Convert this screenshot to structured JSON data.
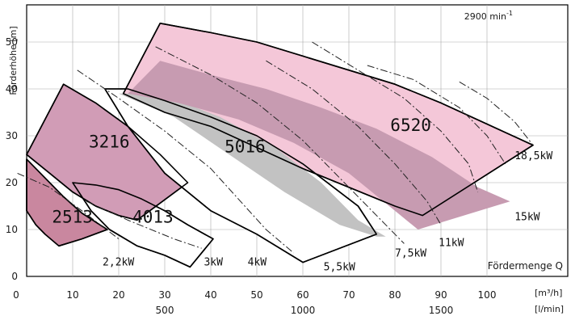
{
  "chart_data": {
    "type": "area",
    "title": "",
    "speed_label": "2900 min",
    "speed_sup": "-1",
    "ylabel": "Förderhöhe [m]",
    "xlabel": "Fördermenge Q",
    "unit_m3h": "[m³/h]",
    "unit_lmin": "[l/min]",
    "xlim": [
      0,
      115
    ],
    "ylim": [
      0,
      57
    ],
    "x_ticks": [
      0,
      10,
      20,
      30,
      40,
      50,
      60,
      70,
      80,
      90,
      100
    ],
    "y_ticks": [
      0,
      10,
      20,
      30,
      40,
      50
    ],
    "lmin_ticks": [
      {
        "value": 500,
        "label": "500"
      },
      {
        "value": 1000,
        "label": "1000"
      },
      {
        "value": 1500,
        "label": "1500"
      }
    ],
    "grid": true,
    "pumps": [
      {
        "name": "2513",
        "color": "#c9879f",
        "label_pos": [
          5.5,
          11.5
        ],
        "upper": [
          [
            0,
            25
          ],
          [
            4,
            21
          ],
          [
            8,
            17
          ],
          [
            12,
            13.5
          ],
          [
            17.5,
            10
          ]
        ],
        "lower": [
          [
            0,
            14
          ],
          [
            2,
            11
          ],
          [
            4,
            9
          ],
          [
            7,
            6.5
          ],
          [
            12,
            8
          ],
          [
            17.5,
            10
          ]
        ],
        "divs": [
          [
            [
              0,
              25
            ],
            [
              0,
              14
            ]
          ],
          [
            [
              17.5,
              10
            ],
            [
              17.5,
              10
            ]
          ]
        ]
      },
      {
        "name": "4013",
        "color": "#ffffff",
        "label_pos": [
          23,
          11.5
        ],
        "upper": [
          [
            10,
            20
          ],
          [
            15,
            19.5
          ],
          [
            20,
            18.5
          ],
          [
            25,
            16.5
          ],
          [
            30,
            14
          ],
          [
            35,
            11
          ],
          [
            40.5,
            8
          ]
        ],
        "lower": [
          [
            10,
            20
          ],
          [
            14,
            14
          ],
          [
            18,
            10
          ],
          [
            24,
            6.5
          ],
          [
            30,
            4.5
          ],
          [
            35.5,
            2
          ]
        ],
        "divs": [
          [
            [
              40.5,
              8
            ],
            [
              35.5,
              2
            ]
          ]
        ]
      },
      {
        "name": "3216",
        "color": "#d19cb6",
        "label_pos": [
          13.5,
          27.5
        ],
        "upper": [
          [
            8,
            41
          ],
          [
            15,
            37
          ],
          [
            22,
            32
          ],
          [
            29,
            26
          ],
          [
            35,
            20
          ]
        ],
        "lower": [
          [
            0,
            26
          ],
          [
            5,
            22
          ],
          [
            10,
            18
          ],
          [
            15,
            15
          ],
          [
            20,
            13
          ],
          [
            24,
            12
          ]
        ],
        "divs": [
          [
            [
              8,
              41
            ],
            [
              0,
              26
            ]
          ],
          [
            [
              35,
              20
            ],
            [
              33,
              16.5
            ],
            [
              30,
              14
            ],
            [
              27,
              12.7
            ],
            [
              24,
              12
            ]
          ]
        ]
      },
      {
        "name": "5016",
        "color": "#ffffff",
        "label_pos": [
          43,
          26.5
        ],
        "upper": [
          [
            17,
            40
          ],
          [
            22,
            40
          ],
          [
            30,
            37.5
          ],
          [
            40,
            34
          ],
          [
            50,
            30
          ],
          [
            60,
            24
          ],
          [
            72,
            15
          ],
          [
            76,
            9
          ]
        ],
        "lower": [
          [
            17,
            40
          ],
          [
            22,
            32
          ],
          [
            30,
            22
          ],
          [
            40,
            14
          ],
          [
            50,
            9
          ],
          [
            60,
            3
          ],
          [
            76,
            9
          ]
        ],
        "divs": []
      },
      {
        "name": "6520",
        "color": "#f4c7d8",
        "label_pos": [
          79,
          31
        ],
        "upper": [
          [
            29,
            54
          ],
          [
            40,
            52
          ],
          [
            50,
            50
          ],
          [
            60,
            47
          ],
          [
            70,
            44
          ],
          [
            80,
            41
          ],
          [
            90,
            37
          ],
          [
            100,
            32.5
          ],
          [
            110,
            28
          ]
        ],
        "lower": [
          [
            21,
            39
          ],
          [
            30,
            35
          ],
          [
            40,
            32
          ],
          [
            50,
            27.5
          ],
          [
            60,
            23
          ],
          [
            70,
            19
          ],
          [
            80,
            15
          ],
          [
            86,
            13
          ]
        ],
        "divs": [
          [
            [
              29,
              54
            ],
            [
              21,
              39
            ]
          ],
          [
            [
              110,
              28
            ],
            [
              100,
              23
            ],
            [
              92,
              19
            ],
            [
              86,
              13
            ]
          ]
        ]
      }
    ],
    "gray_band": {
      "color": "#c2c2c2",
      "left": [
        [
          20,
          39
        ],
        [
          32,
          34
        ],
        [
          44,
          26
        ],
        [
          56,
          18
        ],
        [
          68,
          11
        ],
        [
          76,
          8.5
        ]
      ],
      "right": [
        [
          29,
          39
        ],
        [
          42,
          34
        ],
        [
          54,
          27.5
        ],
        [
          64,
          20
        ],
        [
          72,
          12
        ],
        [
          78,
          8.5
        ]
      ]
    },
    "mauve_band": {
      "color": "#c79bb1",
      "left": [
        [
          29,
          46
        ],
        [
          40,
          43
        ],
        [
          52,
          40
        ],
        [
          64,
          36
        ],
        [
          76,
          31.5
        ],
        [
          88,
          25.5
        ],
        [
          98,
          19
        ],
        [
          105,
          16
        ]
      ],
      "right": [
        [
          22,
          39
        ],
        [
          33,
          37
        ],
        [
          46,
          33.5
        ],
        [
          58,
          28.5
        ],
        [
          70,
          22
        ],
        [
          80,
          14
        ],
        [
          85,
          10
        ]
      ]
    },
    "power_curves": [
      {
        "label": "2,2kW",
        "points": [
          [
            -2,
            22
          ],
          [
            5,
            19
          ],
          [
            12,
            14
          ],
          [
            20,
            8
          ]
        ],
        "label_pos": [
          16.5,
          2.3
        ]
      },
      {
        "label": "3kW",
        "points": [
          [
            13,
            16
          ],
          [
            22,
            12
          ],
          [
            32,
            8
          ],
          [
            38,
            6
          ]
        ],
        "label_pos": [
          38.5,
          2.3
        ]
      },
      {
        "label": "4kW",
        "points": [
          [
            11,
            44
          ],
          [
            20,
            38
          ],
          [
            30,
            31
          ],
          [
            40,
            23
          ],
          [
            52,
            10
          ],
          [
            58,
            5
          ]
        ],
        "label_pos": [
          48,
          2.3
        ]
      },
      {
        "label": "5,5kW",
        "points": [
          [
            28,
            49
          ],
          [
            40,
            43
          ],
          [
            50,
            37
          ],
          [
            60,
            29
          ],
          [
            70,
            19
          ],
          [
            78,
            11
          ],
          [
            82,
            7
          ]
        ],
        "label_pos": [
          64.5,
          1.3
        ]
      },
      {
        "label": "7,5kW",
        "points": [
          [
            52,
            46
          ],
          [
            62,
            40
          ],
          [
            72,
            32
          ],
          [
            80,
            24
          ],
          [
            87,
            16
          ],
          [
            90,
            11
          ]
        ],
        "label_pos": [
          80,
          4.2
        ]
      },
      {
        "label": "11kW",
        "points": [
          [
            62,
            50
          ],
          [
            72,
            44
          ],
          [
            82,
            38
          ],
          [
            90,
            31
          ],
          [
            96,
            24
          ],
          [
            98,
            18
          ]
        ],
        "label_pos": [
          89.5,
          6.5
        ]
      },
      {
        "label": "15kW",
        "points": [
          [
            74,
            45
          ],
          [
            84,
            42
          ],
          [
            94,
            36
          ],
          [
            100,
            30
          ],
          [
            104,
            24
          ]
        ],
        "label_pos": [
          106,
          12
        ]
      },
      {
        "label": "18,5kW",
        "points": [
          [
            94,
            41.5
          ],
          [
            100,
            38
          ],
          [
            106,
            33
          ],
          [
            110,
            28
          ]
        ],
        "label_pos": [
          106,
          25
        ]
      }
    ]
  }
}
